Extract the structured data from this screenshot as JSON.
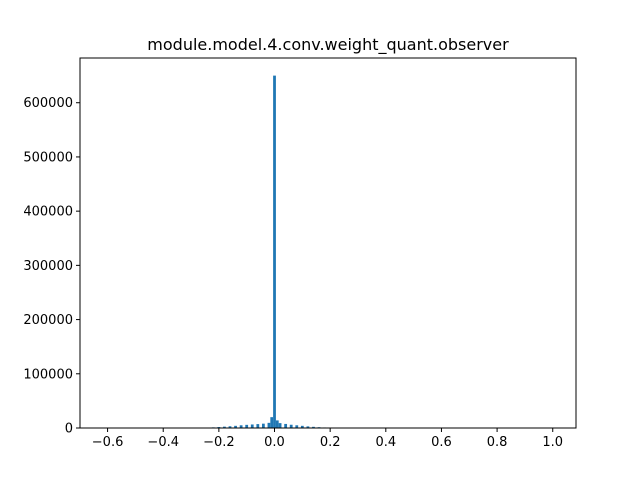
{
  "chart_data": {
    "type": "bar",
    "title": "module.model.4.conv.weight_quant.observer",
    "xlabel": "",
    "ylabel": "",
    "xlim": [
      -0.6991,
      1.0836
    ],
    "ylim": [
      0,
      682500
    ],
    "grid": false,
    "color": "#1f77b4",
    "bin_width": 0.01,
    "x_tick_values": [
      -0.6,
      -0.4,
      -0.2,
      0.0,
      0.2,
      0.4,
      0.6,
      0.8,
      1.0
    ],
    "x_tick_labels": [
      "−0.6",
      "−0.4",
      "−0.2",
      "0.0",
      "0.2",
      "0.4",
      "0.6",
      "0.8",
      "1.0"
    ],
    "y_tick_values": [
      0,
      100000,
      200000,
      300000,
      400000,
      500000,
      600000
    ],
    "y_tick_labels": [
      "0",
      "100000",
      "200000",
      "300000",
      "400000",
      "500000",
      "600000"
    ],
    "bins": [
      {
        "x": -0.6,
        "value": 100
      },
      {
        "x": -0.5,
        "value": 150
      },
      {
        "x": -0.4,
        "value": 200
      },
      {
        "x": -0.3,
        "value": 400
      },
      {
        "x": -0.25,
        "value": 700
      },
      {
        "x": -0.22,
        "value": 1200
      },
      {
        "x": -0.2,
        "value": 1800
      },
      {
        "x": -0.18,
        "value": 2500
      },
      {
        "x": -0.16,
        "value": 3200
      },
      {
        "x": -0.14,
        "value": 4000
      },
      {
        "x": -0.12,
        "value": 5000
      },
      {
        "x": -0.1,
        "value": 5800
      },
      {
        "x": -0.08,
        "value": 6500
      },
      {
        "x": -0.06,
        "value": 7200
      },
      {
        "x": -0.04,
        "value": 8000
      },
      {
        "x": -0.02,
        "value": 9500
      },
      {
        "x": -0.01,
        "value": 20000
      },
      {
        "x": 0.0,
        "value": 650000
      },
      {
        "x": 0.01,
        "value": 14000
      },
      {
        "x": 0.02,
        "value": 9000
      },
      {
        "x": 0.04,
        "value": 7500
      },
      {
        "x": 0.06,
        "value": 6000
      },
      {
        "x": 0.08,
        "value": 5000
      },
      {
        "x": 0.1,
        "value": 4000
      },
      {
        "x": 0.12,
        "value": 3000
      },
      {
        "x": 0.14,
        "value": 2200
      },
      {
        "x": 0.16,
        "value": 1500
      },
      {
        "x": 0.18,
        "value": 1000
      },
      {
        "x": 0.2,
        "value": 600
      },
      {
        "x": 0.3,
        "value": 250
      },
      {
        "x": 0.5,
        "value": 150
      },
      {
        "x": 0.7,
        "value": 100
      },
      {
        "x": 0.9,
        "value": 80
      },
      {
        "x": 1.0,
        "value": 60
      }
    ]
  }
}
